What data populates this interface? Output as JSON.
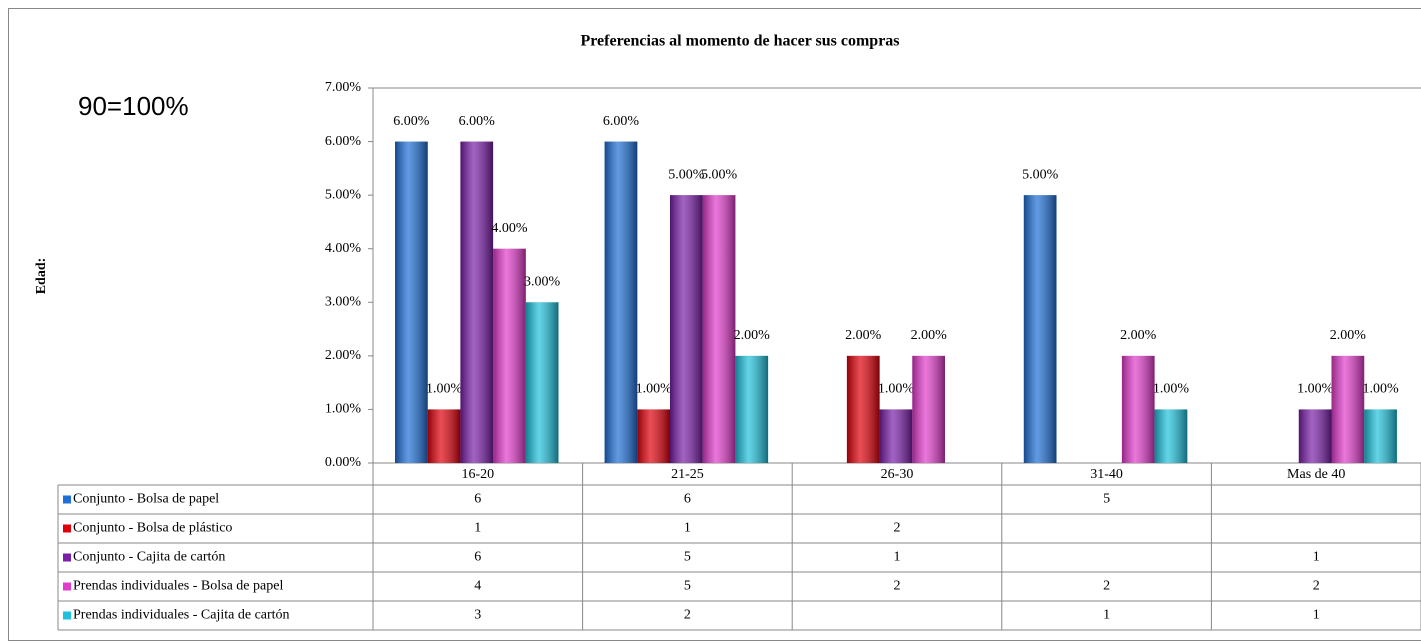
{
  "chart_data": {
    "type": "bar",
    "title": "Preferencias al momento de hacer sus compras",
    "annotation": "90=100%",
    "y_label": "Edad:",
    "categories": [
      "16-20",
      "21-25",
      "26-30",
      "31-40",
      "Mas de 40"
    ],
    "series": [
      {
        "name": "Conjunto - Bolsa de papel",
        "color": "#1f6fd6",
        "values": [
          6,
          6,
          null,
          5,
          null
        ],
        "value_labels": [
          "6.00%",
          "6.00%",
          null,
          "5.00%",
          null
        ]
      },
      {
        "name": "Conjunto - Bolsa de plástico",
        "color": "#e0000c",
        "values": [
          1,
          1,
          2,
          null,
          null
        ],
        "value_labels": [
          "1.00%",
          "1.00%",
          "2.00%",
          null,
          null
        ]
      },
      {
        "name": "Conjunto - Cajita de cartón",
        "color": "#7a1fa8",
        "values": [
          6,
          5,
          1,
          null,
          1
        ],
        "value_labels": [
          "6.00%",
          "5.00%",
          "1.00%",
          null,
          "1.00%"
        ]
      },
      {
        "name": "Prendas individuales - Bolsa de papel",
        "color": "#e23ccc",
        "values": [
          4,
          5,
          2,
          2,
          2
        ],
        "value_labels": [
          "4.00%",
          "5.00%",
          "2.00%",
          "2.00%",
          "2.00%"
        ]
      },
      {
        "name": "Prendas individuales - Cajita de cartón",
        "color": "#1fc2dc",
        "values": [
          3,
          2,
          null,
          1,
          1
        ],
        "value_labels": [
          "3.00%",
          "2.00%",
          null,
          "1.00%",
          "1.00%"
        ]
      }
    ],
    "ylim": [
      0,
      7
    ],
    "yticks": [
      {
        "value": 0,
        "label": "0.00%"
      },
      {
        "value": 1,
        "label": "1.00%"
      },
      {
        "value": 2,
        "label": "2.00%"
      },
      {
        "value": 3,
        "label": "3.00%"
      },
      {
        "value": 4,
        "label": "4.00%"
      },
      {
        "value": 5,
        "label": "5.00%"
      },
      {
        "value": 6,
        "label": "6.00%"
      },
      {
        "value": 7,
        "label": "7.00%"
      }
    ],
    "grid": false,
    "data_table": true
  }
}
